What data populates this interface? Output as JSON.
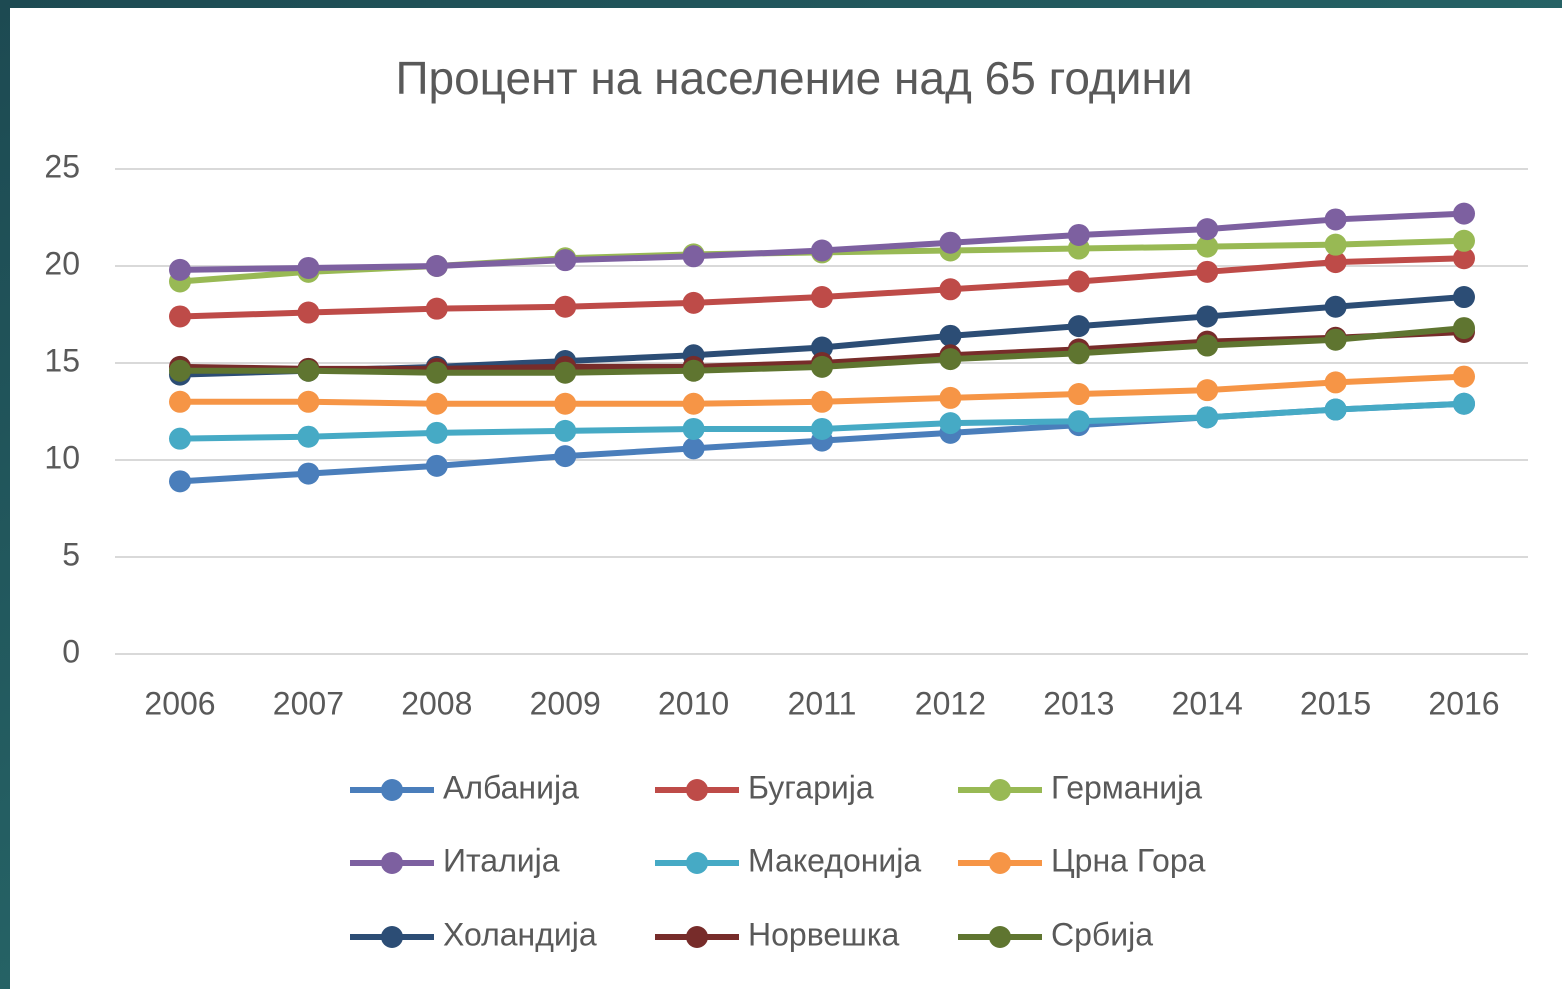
{
  "chart_data": {
    "type": "line",
    "title": "Процент на население над 65 години",
    "categories": [
      "2006",
      "2007",
      "2008",
      "2009",
      "2010",
      "2011",
      "2012",
      "2013",
      "2014",
      "2015",
      "2016"
    ],
    "ylim": [
      0,
      25
    ],
    "yticks": [
      0,
      5,
      10,
      15,
      20,
      25
    ],
    "grid": true,
    "legend": "bottom",
    "series": [
      {
        "name": "Албанија",
        "color": "#4a7ebb",
        "values": [
          8.9,
          9.3,
          9.7,
          10.2,
          10.6,
          11.0,
          11.4,
          11.8,
          12.2,
          12.6,
          12.9
        ]
      },
      {
        "name": "Бугарија",
        "color": "#be4b48",
        "values": [
          17.4,
          17.6,
          17.8,
          17.9,
          18.1,
          18.4,
          18.8,
          19.2,
          19.7,
          20.2,
          20.4
        ]
      },
      {
        "name": "Германија",
        "color": "#98b954",
        "values": [
          19.2,
          19.7,
          20.0,
          20.4,
          20.6,
          20.7,
          20.8,
          20.9,
          21.0,
          21.1,
          21.3
        ]
      },
      {
        "name": "Италија",
        "color": "#7d60a0",
        "values": [
          19.8,
          19.9,
          20.0,
          20.3,
          20.5,
          20.8,
          21.2,
          21.6,
          21.9,
          22.4,
          22.7
        ]
      },
      {
        "name": "Македонија",
        "color": "#46aac5",
        "values": [
          11.1,
          11.2,
          11.4,
          11.5,
          11.6,
          11.6,
          11.9,
          12.0,
          12.2,
          12.6,
          12.9
        ]
      },
      {
        "name": "Црна Гора",
        "color": "#f69546",
        "values": [
          13.0,
          13.0,
          12.9,
          12.9,
          12.9,
          13.0,
          13.2,
          13.4,
          13.6,
          14.0,
          14.3
        ]
      },
      {
        "name": "Холандија",
        "color": "#2c4d75",
        "values": [
          14.4,
          14.6,
          14.8,
          15.1,
          15.4,
          15.8,
          16.4,
          16.9,
          17.4,
          17.9,
          18.4
        ]
      },
      {
        "name": "Норвешка",
        "color": "#772c2a",
        "values": [
          14.8,
          14.7,
          14.7,
          14.8,
          14.8,
          15.0,
          15.4,
          15.7,
          16.1,
          16.3,
          16.6
        ]
      },
      {
        "name": "Србија",
        "color": "#5f7530",
        "values": [
          14.6,
          14.6,
          14.5,
          14.5,
          14.6,
          14.8,
          15.2,
          15.5,
          15.9,
          16.2,
          16.8
        ]
      }
    ]
  }
}
